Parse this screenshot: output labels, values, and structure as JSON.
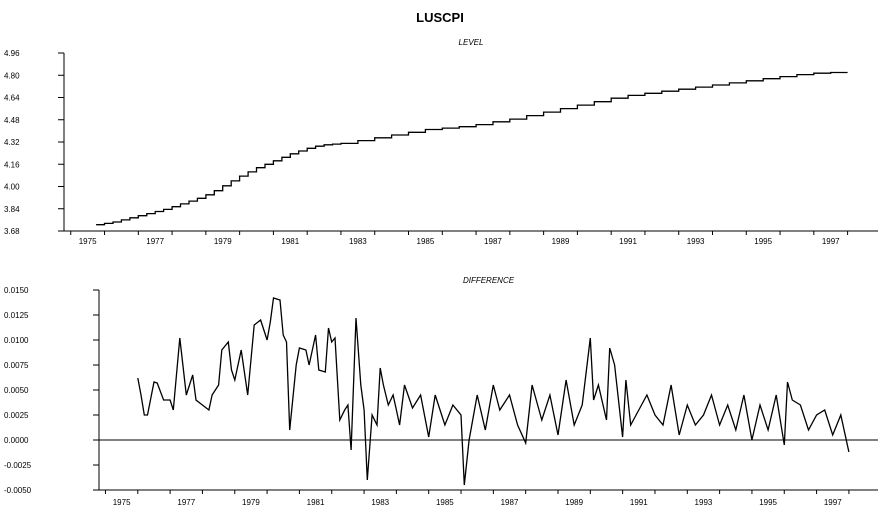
{
  "figure": {
    "title": "LUSCPI"
  },
  "chart_data": [
    {
      "type": "line",
      "subtitle": "LEVEL",
      "xlim": [
        1974.8,
        1998.9
      ],
      "ylim": [
        3.68,
        4.96
      ],
      "yticks": [
        3.68,
        3.84,
        4.0,
        4.16,
        4.32,
        4.48,
        4.64,
        4.8,
        4.96
      ],
      "ytick_labels": [
        "3.68",
        "3.84",
        "4.00",
        "4.16",
        "4.32",
        "4.48",
        "4.64",
        "4.80",
        "4.96"
      ],
      "xticks": [
        1975,
        1977,
        1979,
        1981,
        1983,
        1985,
        1987,
        1989,
        1991,
        1993,
        1995,
        1997
      ],
      "xtick_labels": [
        "1975",
        "1977",
        "1979",
        "1981",
        "1983",
        "1985",
        "1987",
        "1989",
        "1991",
        "1993",
        "1995",
        "1997"
      ],
      "zero_line": false,
      "series": [
        {
          "x": [
            1975.75,
            1976.0,
            1976.25,
            1976.5,
            1976.75,
            1977.0,
            1977.25,
            1977.5,
            1977.75,
            1978.0,
            1978.25,
            1978.5,
            1978.75,
            1979.0,
            1979.25,
            1979.5,
            1979.75,
            1980.0,
            1980.25,
            1980.5,
            1980.75,
            1981.0,
            1981.25,
            1981.5,
            1981.75,
            1982.0,
            1982.25,
            1982.5,
            1982.75,
            1983.0,
            1983.5,
            1984.0,
            1984.5,
            1985.0,
            1985.5,
            1986.0,
            1986.5,
            1987.0,
            1987.5,
            1988.0,
            1988.5,
            1989.0,
            1989.5,
            1990.0,
            1990.5,
            1991.0,
            1991.5,
            1992.0,
            1992.5,
            1993.0,
            1993.5,
            1994.0,
            1994.5,
            1995.0,
            1995.5,
            1996.0,
            1996.5,
            1997.0,
            1997.5,
            1998.0
          ],
          "y": [
            3.725,
            3.735,
            3.745,
            3.76,
            3.775,
            3.79,
            3.805,
            3.82,
            3.835,
            3.855,
            3.875,
            3.895,
            3.915,
            3.94,
            3.97,
            4.005,
            4.04,
            4.075,
            4.105,
            4.135,
            4.16,
            4.185,
            4.21,
            4.235,
            4.255,
            4.275,
            4.29,
            4.3,
            4.305,
            4.31,
            4.33,
            4.35,
            4.37,
            4.39,
            4.41,
            4.42,
            4.43,
            4.445,
            4.465,
            4.485,
            4.51,
            4.535,
            4.56,
            4.585,
            4.61,
            4.635,
            4.655,
            4.67,
            4.685,
            4.7,
            4.715,
            4.73,
            4.745,
            4.76,
            4.775,
            4.79,
            4.805,
            4.815,
            4.82,
            4.82
          ]
        }
      ]
    },
    {
      "type": "line",
      "subtitle": "DIFFERENCE",
      "xlim": [
        1974.8,
        1998.9
      ],
      "ylim": [
        -0.005,
        0.015
      ],
      "yticks": [
        -0.005,
        -0.0025,
        0.0,
        0.0025,
        0.005,
        0.0075,
        0.01,
        0.0125,
        0.015
      ],
      "ytick_labels": [
        "-0.0050",
        "-0.0025",
        "0.0000",
        "0.0025",
        "0.0050",
        "0.0075",
        "0.0100",
        "0.0125",
        "0.0150"
      ],
      "xticks": [
        1975,
        1977,
        1979,
        1981,
        1983,
        1985,
        1987,
        1989,
        1991,
        1993,
        1995,
        1997
      ],
      "xtick_labels": [
        "1975",
        "1977",
        "1979",
        "1981",
        "1983",
        "1985",
        "1987",
        "1989",
        "1991",
        "1993",
        "1995",
        "1997"
      ],
      "zero_line": true,
      "series": [
        {
          "x": [
            1976.0,
            1976.1,
            1976.2,
            1976.3,
            1976.5,
            1976.6,
            1976.8,
            1977.0,
            1977.1,
            1977.3,
            1977.5,
            1977.7,
            1977.8,
            1978.0,
            1978.2,
            1978.3,
            1978.5,
            1978.6,
            1978.8,
            1978.9,
            1979.0,
            1979.2,
            1979.4,
            1979.6,
            1979.8,
            1980.0,
            1980.1,
            1980.2,
            1980.4,
            1980.5,
            1980.6,
            1980.7,
            1980.9,
            1981.0,
            1981.2,
            1981.3,
            1981.5,
            1981.6,
            1981.8,
            1981.9,
            1982.0,
            1982.1,
            1982.25,
            1982.4,
            1982.5,
            1982.6,
            1982.75,
            1982.9,
            1983.0,
            1983.1,
            1983.25,
            1983.4,
            1983.5,
            1983.6,
            1983.75,
            1983.9,
            1984.0,
            1984.1,
            1984.25,
            1984.5,
            1984.75,
            1985.0,
            1985.2,
            1985.5,
            1985.75,
            1986.0,
            1986.1,
            1986.25,
            1986.5,
            1986.75,
            1987.0,
            1987.2,
            1987.5,
            1987.75,
            1988.0,
            1988.2,
            1988.5,
            1988.75,
            1989.0,
            1989.25,
            1989.5,
            1989.75,
            1990.0,
            1990.1,
            1990.25,
            1990.5,
            1990.6,
            1990.75,
            1991.0,
            1991.1,
            1991.25,
            1991.5,
            1991.75,
            1992.0,
            1992.25,
            1992.5,
            1992.75,
            1993.0,
            1993.25,
            1993.5,
            1993.75,
            1994.0,
            1994.25,
            1994.5,
            1994.75,
            1995.0,
            1995.25,
            1995.5,
            1995.75,
            1996.0,
            1996.1,
            1996.25,
            1996.5,
            1996.75,
            1997.0,
            1997.25,
            1997.5,
            1997.75,
            1998.0
          ],
          "y": [
            0.0062,
            0.0045,
            0.0025,
            0.0025,
            0.0058,
            0.0057,
            0.004,
            0.004,
            0.003,
            0.0102,
            0.0045,
            0.0065,
            0.004,
            0.0035,
            0.003,
            0.0045,
            0.0055,
            0.009,
            0.0098,
            0.007,
            0.006,
            0.009,
            0.0045,
            0.0115,
            0.012,
            0.01,
            0.0118,
            0.0142,
            0.014,
            0.0105,
            0.0098,
            0.001,
            0.0075,
            0.0092,
            0.009,
            0.0075,
            0.0105,
            0.007,
            0.0068,
            0.0112,
            0.0098,
            0.0102,
            0.002,
            0.003,
            0.0035,
            -0.001,
            0.0122,
            0.0055,
            0.003,
            -0.004,
            0.0025,
            0.0015,
            0.0072,
            0.0055,
            0.0035,
            0.0045,
            0.003,
            0.0015,
            0.0055,
            0.0032,
            0.0045,
            0.0003,
            0.0045,
            0.0015,
            0.0035,
            0.0025,
            -0.0045,
            0.0,
            0.0045,
            0.001,
            0.0055,
            0.003,
            0.0045,
            0.0015,
            -0.0003,
            0.0055,
            0.002,
            0.0045,
            0.0005,
            0.006,
            0.0015,
            0.0035,
            0.0102,
            0.004,
            0.0055,
            0.002,
            0.0092,
            0.0075,
            0.0003,
            0.006,
            0.0015,
            0.003,
            0.0045,
            0.0025,
            0.0015,
            0.0055,
            0.0005,
            0.0035,
            0.0015,
            0.0025,
            0.0045,
            0.0015,
            0.0035,
            0.001,
            0.0045,
            0.0,
            0.0035,
            0.001,
            0.0045,
            -0.0005,
            0.0058,
            0.004,
            0.0035,
            0.001,
            0.0025,
            0.003,
            0.0005,
            0.0025,
            -0.0012
          ]
        }
      ]
    }
  ]
}
